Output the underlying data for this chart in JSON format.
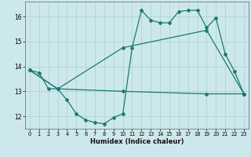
{
  "xlabel": "Humidex (Indice chaleur)",
  "ylabel": "",
  "bg_color": "#cde8ec",
  "line_color": "#1a7a6e",
  "grid_color": "#afd4d8",
  "xlim": [
    -0.5,
    23.5
  ],
  "ylim": [
    11.5,
    16.6
  ],
  "xticks": [
    0,
    1,
    2,
    3,
    4,
    5,
    6,
    7,
    8,
    9,
    10,
    11,
    12,
    13,
    14,
    15,
    16,
    17,
    18,
    19,
    20,
    21,
    22,
    23
  ],
  "yticks": [
    12,
    13,
    14,
    15,
    16
  ],
  "line1_x": [
    0,
    1,
    2,
    3,
    4,
    5,
    6,
    7,
    8,
    9,
    10,
    11,
    12,
    13,
    14,
    15,
    16,
    17,
    18,
    19,
    20,
    21,
    22,
    23
  ],
  "line1_y": [
    13.85,
    13.75,
    13.1,
    13.1,
    12.65,
    12.1,
    11.85,
    11.75,
    11.7,
    11.95,
    12.1,
    14.75,
    16.25,
    15.85,
    15.75,
    15.75,
    16.2,
    16.25,
    16.25,
    15.55,
    15.95,
    14.5,
    13.8,
    12.9
  ],
  "line2_x": [
    0,
    3,
    10,
    19,
    23
  ],
  "line2_y": [
    13.85,
    13.1,
    14.75,
    15.45,
    12.9
  ],
  "line3_x": [
    0,
    3,
    10,
    19,
    23
  ],
  "line3_y": [
    13.85,
    13.1,
    13.0,
    12.9,
    12.9
  ]
}
